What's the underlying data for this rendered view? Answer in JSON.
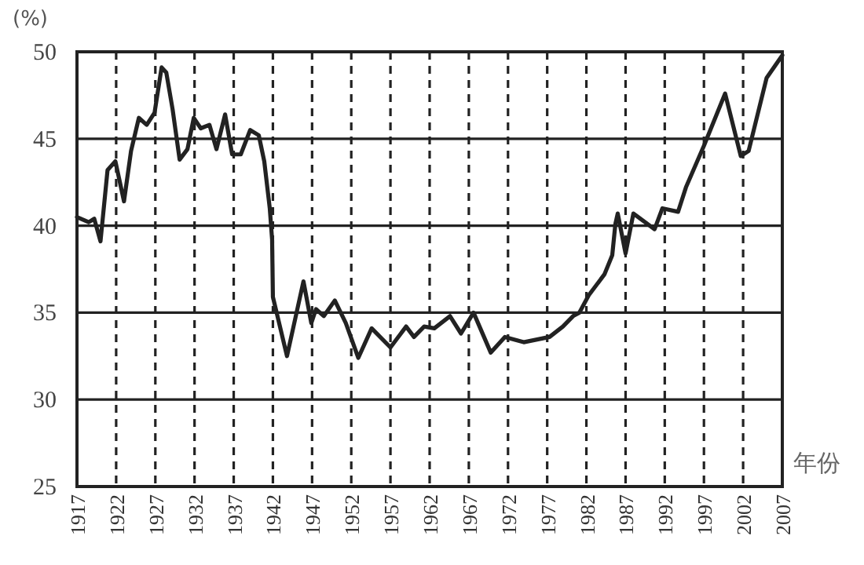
{
  "chart_data": {
    "type": "line",
    "xlabel": "年份",
    "ylabel": "(%)",
    "x": [
      1917,
      1918.5,
      1919.2,
      1920,
      1920.9,
      1921.9,
      1923,
      1923.9,
      1924.9,
      1925.9,
      1926.9,
      1927.8,
      1928.4,
      1929.2,
      1930.1,
      1931.1,
      1931.9,
      1932.8,
      1933.9,
      1934.8,
      1935.9,
      1936.8,
      1937.9,
      1939.1,
      1940.2,
      1940.9,
      1941.6,
      1941.9,
      1942,
      1943.8,
      1945.9,
      1946.9,
      1947.5,
      1948.5,
      1949.9,
      1951.3,
      1952.9,
      1954.6,
      1957,
      1959,
      1960,
      1961.3,
      1962.6,
      1964.6,
      1966,
      1967.6,
      1969.8,
      1971.6,
      1974,
      1977.3,
      1979,
      1980.3,
      1981.1,
      1982.3,
      1984.3,
      1985.3,
      1985.7,
      1986,
      1987,
      1988,
      1990.7,
      1991.7,
      1993.7,
      1994.7,
      1997,
      1999.7,
      2001.7,
      2002.7,
      2005,
      2007
    ],
    "values": [
      40.5,
      40.2,
      40.4,
      39.1,
      43.2,
      43.7,
      41.4,
      44.3,
      46.2,
      45.8,
      46.5,
      49.1,
      48.8,
      46.7,
      43.8,
      44.4,
      46.2,
      45.6,
      45.8,
      44.4,
      46.4,
      44.1,
      44.1,
      45.5,
      45.2,
      43.7,
      41,
      39.2,
      35.9,
      32.5,
      36.8,
      34.4,
      35.2,
      34.8,
      35.7,
      34.4,
      32.4,
      34.1,
      33,
      34.2,
      33.6,
      34.2,
      34.1,
      34.8,
      33.8,
      35,
      32.7,
      33.6,
      33.3,
      33.6,
      34.2,
      34.8,
      35,
      36,
      37.2,
      38.3,
      40.1,
      40.7,
      38.4,
      40.7,
      39.8,
      41,
      40.8,
      42.2,
      44.6,
      47.6,
      44,
      44.3,
      48.5,
      49.8
    ],
    "color": "#222222",
    "line_style": "solid",
    "grid": true,
    "xlim": [
      1917,
      2007
    ],
    "xticks": [
      1917,
      1922,
      1927,
      1932,
      1937,
      1942,
      1947,
      1952,
      1957,
      1962,
      1967,
      1972,
      1977,
      1982,
      1987,
      1992,
      1997,
      2002,
      2007
    ],
    "ylim": [
      25,
      50
    ],
    "yticks": [
      25,
      30,
      35,
      40,
      45,
      50
    ]
  }
}
